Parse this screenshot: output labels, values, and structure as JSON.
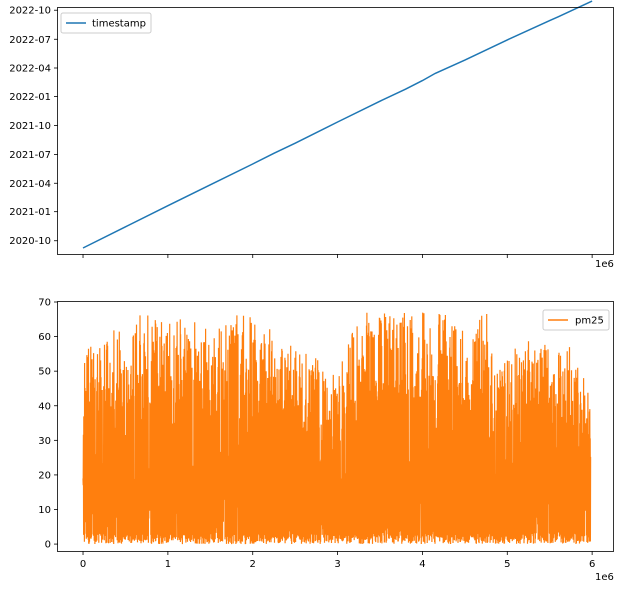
{
  "chart_data": [
    {
      "type": "line",
      "x_range": [
        0,
        6000000
      ],
      "x_scale_label": "1e6",
      "x_tick_values": [
        0,
        1000000,
        2000000,
        3000000,
        4000000,
        5000000,
        6000000
      ],
      "y_range": [
        "2020-08-20",
        "2022-10-08"
      ],
      "y_tick_labels": [
        "2020-10",
        "2021-01",
        "2021-04",
        "2021-07",
        "2021-10",
        "2022-01",
        "2022-04",
        "2022-07",
        "2022-10"
      ],
      "y_tick_dates": [
        "2020-10-01",
        "2021-01-01",
        "2021-04-01",
        "2021-07-01",
        "2021-10-01",
        "2022-01-01",
        "2022-04-01",
        "2022-07-01",
        "2022-10-01"
      ],
      "grid": false,
      "legend_position": "upper-left",
      "series": [
        {
          "name": "timestamp",
          "color": "#1f77b4",
          "points": [
            {
              "x": 0,
              "y": "2020-09-08"
            },
            {
              "x": 500000,
              "y": "2020-11-14"
            },
            {
              "x": 1000000,
              "y": "2021-01-20"
            },
            {
              "x": 1500000,
              "y": "2021-03-27"
            },
            {
              "x": 2000000,
              "y": "2021-06-01"
            },
            {
              "x": 2250000,
              "y": "2021-07-05"
            },
            {
              "x": 2500000,
              "y": "2021-08-06"
            },
            {
              "x": 3000000,
              "y": "2021-10-12"
            },
            {
              "x": 3500000,
              "y": "2021-12-17"
            },
            {
              "x": 3800000,
              "y": "2022-01-24"
            },
            {
              "x": 4000000,
              "y": "2022-02-20"
            },
            {
              "x": 4150000,
              "y": "2022-03-15"
            },
            {
              "x": 4500000,
              "y": "2022-04-26"
            },
            {
              "x": 5000000,
              "y": "2022-06-29"
            },
            {
              "x": 5500000,
              "y": "2022-08-29"
            },
            {
              "x": 5600000,
              "y": "2022-09-10"
            },
            {
              "x": 6000000,
              "y": "2022-10-30"
            }
          ]
        }
      ]
    },
    {
      "type": "line",
      "x_range": [
        0,
        6000000
      ],
      "x_scale_label": "1e6",
      "x_tick_labels": [
        "0",
        "1",
        "2",
        "3",
        "4",
        "5",
        "6"
      ],
      "x_tick_values": [
        0,
        1000000,
        2000000,
        3000000,
        4000000,
        5000000,
        6000000
      ],
      "y_range": [
        -2,
        70
      ],
      "y_tick_values": [
        0,
        10,
        20,
        30,
        40,
        50,
        60,
        70
      ],
      "grid": false,
      "legend_position": "upper-right",
      "series": [
        {
          "name": "pm25",
          "color": "#ff7f0e",
          "value_min": 0,
          "value_max": 67,
          "envelope_x": [
            0,
            250000,
            500000,
            750000,
            1000000,
            1250000,
            1500000,
            1750000,
            2000000,
            2250000,
            2500000,
            2750000,
            3000000,
            3250000,
            3500000,
            3750000,
            4000000,
            4250000,
            4500000,
            4750000,
            5000000,
            5250000,
            5500000,
            5750000,
            6000000
          ],
          "envelope_max": [
            57,
            60,
            65,
            67,
            67,
            66,
            63,
            67,
            67,
            61,
            57,
            54,
            50,
            67,
            67,
            67,
            67,
            67,
            67,
            67,
            55,
            60,
            57,
            57,
            43
          ]
        }
      ]
    }
  ]
}
